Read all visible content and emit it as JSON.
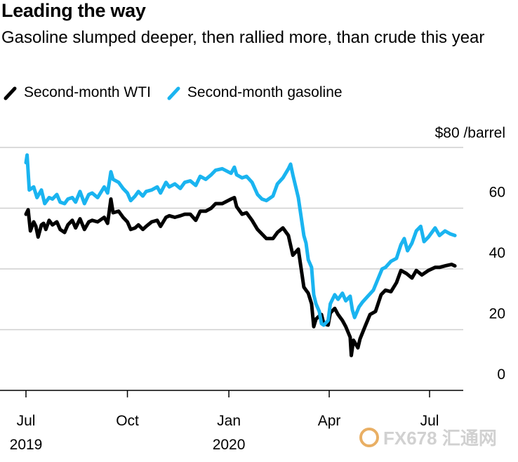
{
  "header": {
    "title": "Leading the way",
    "subtitle": "Gasoline slumped deeper, then rallied more, than crude this year"
  },
  "watermark": {
    "text": "FX678 汇通网"
  },
  "chart_data": {
    "type": "line",
    "unit_label": "$80 /barrel",
    "ylim": [
      0,
      80
    ],
    "y_ticks": [
      20,
      40,
      60
    ],
    "y_tick_labels": [
      "20",
      "40",
      "60"
    ],
    "y_zero_label": "0",
    "grid": true,
    "legend_position": "top-left",
    "x_ticks": [
      {
        "date": "2019-07-01",
        "label": "Jul",
        "year": "2019"
      },
      {
        "date": "2019-10-01",
        "label": "Oct",
        "year": ""
      },
      {
        "date": "2020-01-01",
        "label": "Jan",
        "year": "2020"
      },
      {
        "date": "2020-04-01",
        "label": "Apr",
        "year": ""
      },
      {
        "date": "2020-07-01",
        "label": "Jul",
        "year": ""
      }
    ],
    "x_range": [
      "2019-06-28",
      "2020-07-31"
    ],
    "colors": {
      "wti": "#000000",
      "gasoline": "#1ab4f0"
    },
    "series": [
      {
        "name": "Second-month WTI",
        "key": "wti",
        "points": [
          [
            "2019-07-01",
            58.0
          ],
          [
            "2019-07-03",
            59.5
          ],
          [
            "2019-07-05",
            52.5
          ],
          [
            "2019-07-08",
            55.5
          ],
          [
            "2019-07-10",
            54.0
          ],
          [
            "2019-07-12",
            50.5
          ],
          [
            "2019-07-15",
            54.5
          ],
          [
            "2019-07-17",
            55.0
          ],
          [
            "2019-07-19",
            53.0
          ],
          [
            "2019-07-22",
            56.0
          ],
          [
            "2019-07-25",
            54.5
          ],
          [
            "2019-07-29",
            55.5
          ],
          [
            "2019-08-01",
            53.0
          ],
          [
            "2019-08-05",
            52.0
          ],
          [
            "2019-08-08",
            54.5
          ],
          [
            "2019-08-12",
            56.0
          ],
          [
            "2019-08-15",
            53.5
          ],
          [
            "2019-08-19",
            56.5
          ],
          [
            "2019-08-23",
            53.0
          ],
          [
            "2019-08-27",
            55.5
          ],
          [
            "2019-08-30",
            56.0
          ],
          [
            "2019-09-04",
            55.5
          ],
          [
            "2019-09-10",
            57.0
          ],
          [
            "2019-09-13",
            55.0
          ],
          [
            "2019-09-16",
            63.0
          ],
          [
            "2019-09-18",
            58.5
          ],
          [
            "2019-09-23",
            59.0
          ],
          [
            "2019-09-27",
            57.0
          ],
          [
            "2019-10-01",
            55.5
          ],
          [
            "2019-10-04",
            53.0
          ],
          [
            "2019-10-08",
            53.5
          ],
          [
            "2019-10-11",
            54.5
          ],
          [
            "2019-10-15",
            53.0
          ],
          [
            "2019-10-18",
            54.0
          ],
          [
            "2019-10-23",
            55.5
          ],
          [
            "2019-10-28",
            56.0
          ],
          [
            "2019-10-31",
            54.0
          ],
          [
            "2019-11-05",
            57.0
          ],
          [
            "2019-11-08",
            57.5
          ],
          [
            "2019-11-13",
            57.0
          ],
          [
            "2019-11-18",
            57.5
          ],
          [
            "2019-11-22",
            58.0
          ],
          [
            "2019-11-27",
            58.0
          ],
          [
            "2019-12-02",
            56.0
          ],
          [
            "2019-12-06",
            59.0
          ],
          [
            "2019-12-11",
            59.0
          ],
          [
            "2019-12-16",
            60.0
          ],
          [
            "2019-12-20",
            61.5
          ],
          [
            "2019-12-26",
            61.5
          ],
          [
            "2020-01-03",
            63.0
          ],
          [
            "2020-01-06",
            63.5
          ],
          [
            "2020-01-08",
            60.5
          ],
          [
            "2020-01-13",
            58.0
          ],
          [
            "2020-01-17",
            58.5
          ],
          [
            "2020-01-22",
            56.0
          ],
          [
            "2020-01-27",
            53.0
          ],
          [
            "2020-01-31",
            51.5
          ],
          [
            "2020-02-04",
            50.0
          ],
          [
            "2020-02-10",
            50.0
          ],
          [
            "2020-02-14",
            52.0
          ],
          [
            "2020-02-19",
            53.5
          ],
          [
            "2020-02-24",
            51.0
          ],
          [
            "2020-02-28",
            44.5
          ],
          [
            "2020-03-04",
            46.5
          ],
          [
            "2020-03-09",
            34.0
          ],
          [
            "2020-03-11",
            33.0
          ],
          [
            "2020-03-13",
            32.0
          ],
          [
            "2020-03-16",
            28.5
          ],
          [
            "2020-03-18",
            21.0
          ],
          [
            "2020-03-20",
            23.5
          ],
          [
            "2020-03-23",
            24.5
          ],
          [
            "2020-03-25",
            25.0
          ],
          [
            "2020-03-27",
            22.0
          ],
          [
            "2020-03-31",
            21.5
          ],
          [
            "2020-04-02",
            25.5
          ],
          [
            "2020-04-06",
            27.0
          ],
          [
            "2020-04-09",
            25.0
          ],
          [
            "2020-04-13",
            23.0
          ],
          [
            "2020-04-16",
            21.0
          ],
          [
            "2020-04-20",
            17.5
          ],
          [
            "2020-04-21",
            11.5
          ],
          [
            "2020-04-23",
            16.5
          ],
          [
            "2020-04-27",
            14.0
          ],
          [
            "2020-04-29",
            17.0
          ],
          [
            "2020-05-04",
            21.5
          ],
          [
            "2020-05-08",
            25.0
          ],
          [
            "2020-05-13",
            26.0
          ],
          [
            "2020-05-18",
            31.5
          ],
          [
            "2020-05-22",
            33.0
          ],
          [
            "2020-05-27",
            32.5
          ],
          [
            "2020-06-01",
            35.5
          ],
          [
            "2020-06-05",
            39.5
          ],
          [
            "2020-06-10",
            38.5
          ],
          [
            "2020-06-15",
            37.0
          ],
          [
            "2020-06-19",
            39.5
          ],
          [
            "2020-06-24",
            38.0
          ],
          [
            "2020-06-30",
            39.5
          ],
          [
            "2020-07-06",
            40.5
          ],
          [
            "2020-07-10",
            40.5
          ],
          [
            "2020-07-15",
            41.0
          ],
          [
            "2020-07-21",
            41.5
          ],
          [
            "2020-07-24",
            41.0
          ]
        ]
      },
      {
        "name": "Second-month gasoline",
        "key": "gasoline",
        "points": [
          [
            "2019-07-01",
            75.0
          ],
          [
            "2019-07-02",
            77.5
          ],
          [
            "2019-07-04",
            66.0
          ],
          [
            "2019-07-08",
            67.0
          ],
          [
            "2019-07-11",
            63.5
          ],
          [
            "2019-07-15",
            66.0
          ],
          [
            "2019-07-18",
            61.5
          ],
          [
            "2019-07-22",
            63.5
          ],
          [
            "2019-07-25",
            63.0
          ],
          [
            "2019-07-29",
            64.5
          ],
          [
            "2019-08-01",
            62.0
          ],
          [
            "2019-08-05",
            61.5
          ],
          [
            "2019-08-08",
            63.0
          ],
          [
            "2019-08-12",
            63.5
          ],
          [
            "2019-08-15",
            62.0
          ],
          [
            "2019-08-19",
            65.5
          ],
          [
            "2019-08-23",
            61.5
          ],
          [
            "2019-08-27",
            64.5
          ],
          [
            "2019-08-30",
            65.0
          ],
          [
            "2019-09-04",
            63.5
          ],
          [
            "2019-09-10",
            67.0
          ],
          [
            "2019-09-13",
            65.0
          ],
          [
            "2019-09-16",
            72.0
          ],
          [
            "2019-09-18",
            69.5
          ],
          [
            "2019-09-23",
            68.5
          ],
          [
            "2019-09-27",
            66.5
          ],
          [
            "2019-10-01",
            65.0
          ],
          [
            "2019-10-04",
            62.5
          ],
          [
            "2019-10-08",
            64.0
          ],
          [
            "2019-10-11",
            65.5
          ],
          [
            "2019-10-15",
            64.0
          ],
          [
            "2019-10-18",
            65.5
          ],
          [
            "2019-10-23",
            66.0
          ],
          [
            "2019-10-28",
            67.0
          ],
          [
            "2019-10-31",
            65.0
          ],
          [
            "2019-11-05",
            68.5
          ],
          [
            "2019-11-08",
            67.0
          ],
          [
            "2019-11-13",
            68.0
          ],
          [
            "2019-11-18",
            66.5
          ],
          [
            "2019-11-22",
            68.5
          ],
          [
            "2019-11-27",
            69.0
          ],
          [
            "2019-12-02",
            67.5
          ],
          [
            "2019-12-06",
            70.5
          ],
          [
            "2019-12-11",
            69.5
          ],
          [
            "2019-12-16",
            71.0
          ],
          [
            "2019-12-20",
            72.5
          ],
          [
            "2019-12-26",
            73.0
          ],
          [
            "2020-01-03",
            71.5
          ],
          [
            "2020-01-06",
            73.5
          ],
          [
            "2020-01-08",
            71.0
          ],
          [
            "2020-01-13",
            70.0
          ],
          [
            "2020-01-17",
            70.5
          ],
          [
            "2020-01-22",
            68.5
          ],
          [
            "2020-01-27",
            64.5
          ],
          [
            "2020-01-31",
            63.0
          ],
          [
            "2020-02-04",
            62.5
          ],
          [
            "2020-02-10",
            64.0
          ],
          [
            "2020-02-14",
            68.0
          ],
          [
            "2020-02-19",
            70.0
          ],
          [
            "2020-02-24",
            73.0
          ],
          [
            "2020-02-26",
            74.5
          ],
          [
            "2020-02-28",
            71.0
          ],
          [
            "2020-03-04",
            63.5
          ],
          [
            "2020-03-09",
            51.0
          ],
          [
            "2020-03-11",
            48.5
          ],
          [
            "2020-03-13",
            43.0
          ],
          [
            "2020-03-16",
            40.5
          ],
          [
            "2020-03-18",
            31.5
          ],
          [
            "2020-03-20",
            28.5
          ],
          [
            "2020-03-23",
            26.0
          ],
          [
            "2020-03-25",
            22.0
          ],
          [
            "2020-03-27",
            21.5
          ],
          [
            "2020-03-31",
            23.0
          ],
          [
            "2020-04-02",
            28.5
          ],
          [
            "2020-04-06",
            31.5
          ],
          [
            "2020-04-09",
            30.0
          ],
          [
            "2020-04-13",
            32.0
          ],
          [
            "2020-04-16",
            29.5
          ],
          [
            "2020-04-20",
            31.0
          ],
          [
            "2020-04-22",
            26.5
          ],
          [
            "2020-04-24",
            24.0
          ],
          [
            "2020-04-28",
            27.5
          ],
          [
            "2020-05-01",
            29.0
          ],
          [
            "2020-05-06",
            31.0
          ],
          [
            "2020-05-11",
            33.0
          ],
          [
            "2020-05-15",
            36.5
          ],
          [
            "2020-05-19",
            40.0
          ],
          [
            "2020-05-22",
            40.5
          ],
          [
            "2020-05-27",
            42.5
          ],
          [
            "2020-06-01",
            43.5
          ],
          [
            "2020-06-05",
            48.0
          ],
          [
            "2020-06-08",
            50.0
          ],
          [
            "2020-06-11",
            46.0
          ],
          [
            "2020-06-15",
            48.5
          ],
          [
            "2020-06-19",
            52.5
          ],
          [
            "2020-06-23",
            54.0
          ],
          [
            "2020-06-26",
            49.0
          ],
          [
            "2020-06-30",
            50.5
          ],
          [
            "2020-07-06",
            53.5
          ],
          [
            "2020-07-10",
            51.0
          ],
          [
            "2020-07-15",
            52.5
          ],
          [
            "2020-07-20",
            51.5
          ],
          [
            "2020-07-24",
            51.0
          ]
        ]
      }
    ]
  }
}
